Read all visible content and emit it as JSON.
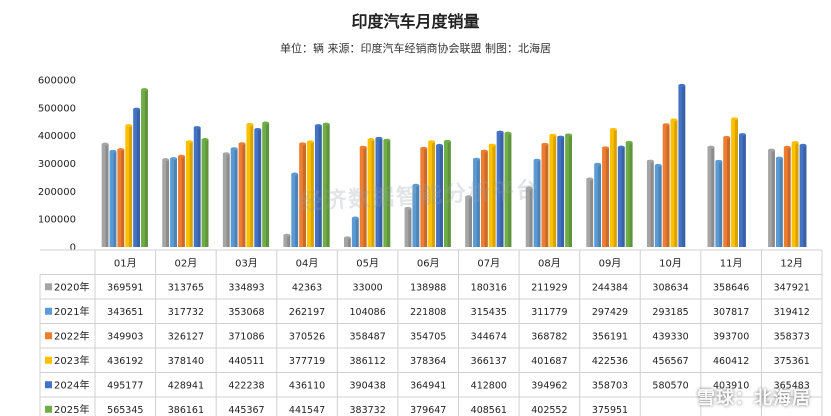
{
  "header": {
    "title": "印度汽车月度销量",
    "subtitle": "单位：辆 来源：印度汽车经销商协会联盟 制图：北海居"
  },
  "watermark": {
    "bottom_right": "雪球：北海居",
    "center": "经济数据智能分析平台"
  },
  "chart_data": {
    "type": "bar",
    "categories": [
      "01月",
      "02月",
      "03月",
      "04月",
      "05月",
      "06月",
      "07月",
      "08月",
      "09月",
      "10月",
      "11月",
      "12月"
    ],
    "ylim": [
      0,
      600000
    ],
    "yticks": [
      0,
      100000,
      200000,
      300000,
      400000,
      500000,
      600000
    ],
    "grid": false,
    "legend": "table-below",
    "series": [
      {
        "name": "2020年",
        "color": "#a5a5a5",
        "values": [
          369591,
          313765,
          334893,
          42363,
          33000,
          138988,
          180316,
          211929,
          244384,
          308634,
          358646,
          347921
        ]
      },
      {
        "name": "2021年",
        "color": "#5b9bd5",
        "values": [
          343651,
          317732,
          353068,
          262197,
          104086,
          221808,
          315435,
          311779,
          297429,
          293185,
          307817,
          319412
        ]
      },
      {
        "name": "2022年",
        "color": "#ed7d31",
        "values": [
          349903,
          326127,
          371086,
          370526,
          358487,
          354705,
          344674,
          368782,
          356191,
          439330,
          393700,
          358373
        ]
      },
      {
        "name": "2023年",
        "color": "#ffc000",
        "values": [
          436192,
          378140,
          440511,
          377719,
          386112,
          378364,
          366137,
          401687,
          422536,
          456567,
          460412,
          375361
        ]
      },
      {
        "name": "2024年",
        "color": "#4472c4",
        "values": [
          495177,
          428941,
          422238,
          436110,
          390438,
          364941,
          412800,
          394962,
          358703,
          580570,
          403910,
          365483
        ]
      },
      {
        "name": "2025年",
        "color": "#70ad47",
        "values": [
          565345,
          386161,
          445367,
          441547,
          383732,
          379647,
          408561,
          402552,
          375951,
          null,
          null,
          null
        ]
      }
    ]
  }
}
